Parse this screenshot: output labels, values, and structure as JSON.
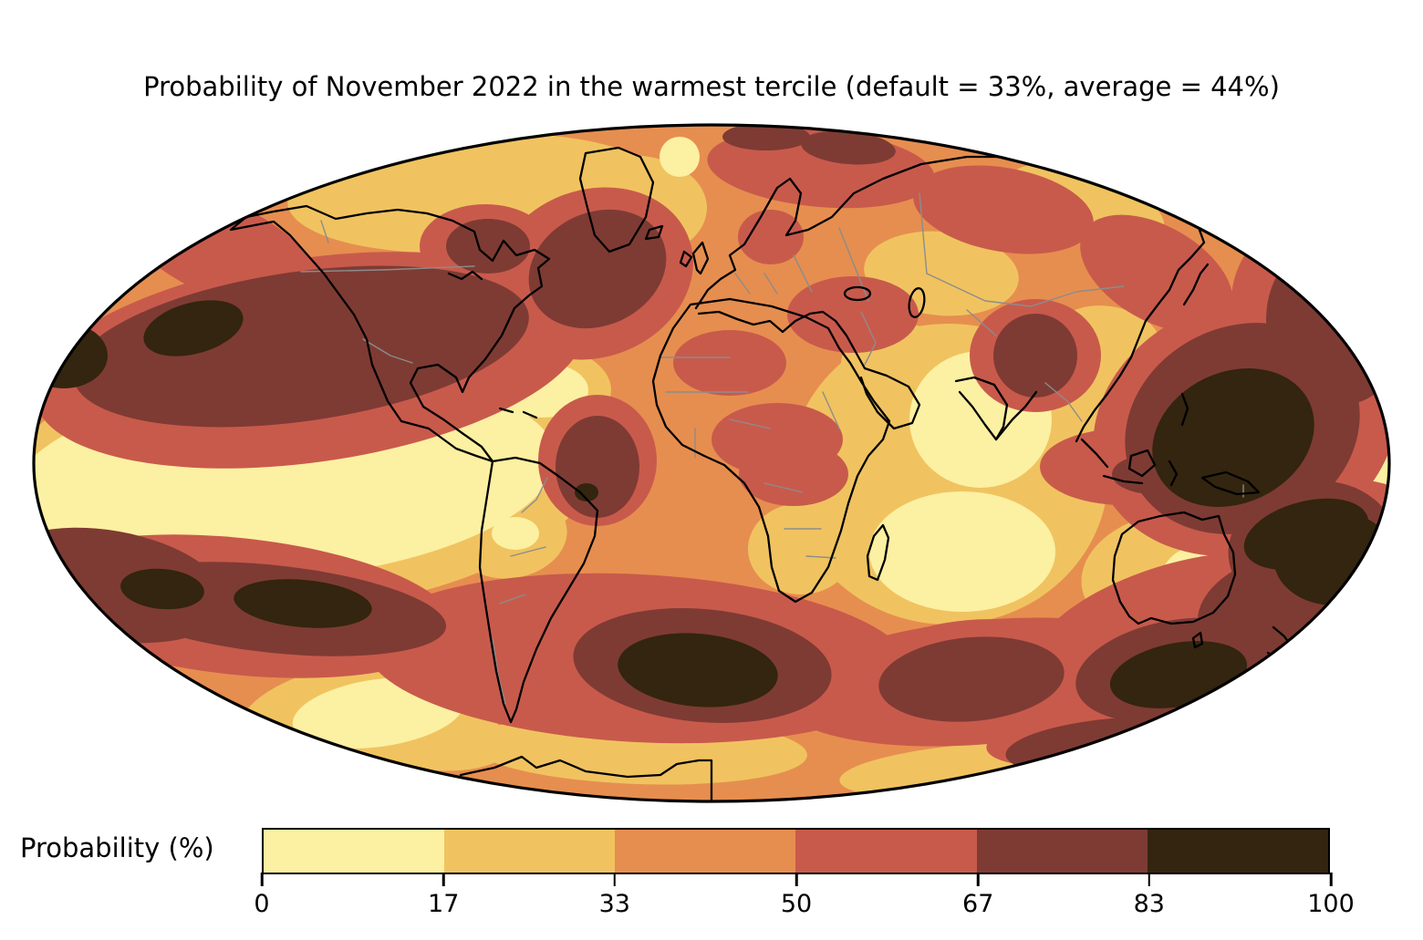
{
  "figure": {
    "title": "Probability of November 2022 in the warmest tercile (default = 33%, average = 44%)"
  },
  "colorbar": {
    "label": "Probability (%)",
    "segments": [
      {
        "range": "0-17",
        "color": "#FCF0A2",
        "width_pct": 17
      },
      {
        "range": "17-33",
        "color": "#F0C360",
        "width_pct": 16
      },
      {
        "range": "33-50",
        "color": "#E68E4F",
        "width_pct": 17
      },
      {
        "range": "50-67",
        "color": "#C85A4C",
        "width_pct": 17
      },
      {
        "range": "67-83",
        "color": "#7E3B33",
        "width_pct": 16
      },
      {
        "range": "83-100",
        "color": "#33250F",
        "width_pct": 17
      }
    ],
    "ticks": [
      {
        "label": "0",
        "pos_pct": 0
      },
      {
        "label": "17",
        "pos_pct": 17
      },
      {
        "label": "33",
        "pos_pct": 33
      },
      {
        "label": "50",
        "pos_pct": 50
      },
      {
        "label": "67",
        "pos_pct": 67
      },
      {
        "label": "83",
        "pos_pct": 83
      },
      {
        "label": "100",
        "pos_pct": 100
      }
    ]
  },
  "palette": {
    "bin_0_17": "#FCF0A2",
    "bin_17_33": "#F0C360",
    "bin_33_50": "#E68E4F",
    "bin_50_67": "#C85A4C",
    "bin_67_83": "#7E3B33",
    "bin_83_100": "#33250F",
    "coastline": "#000000",
    "border": "#8C8C8C",
    "background": "#FFFFFF"
  },
  "chart_data": {
    "type": "heatmap",
    "subtype": "filled-contour probability map on Mollweide world projection",
    "title": "Probability of November 2022 in the warmest tercile (default = 33%, average = 44%)",
    "colorbar_label": "Probability (%)",
    "tick_values": [
      0,
      17,
      33,
      50,
      67,
      83,
      100
    ],
    "bins": [
      {
        "range": [
          0,
          17
        ],
        "color": "#FCF0A2"
      },
      {
        "range": [
          17,
          33
        ],
        "color": "#F0C360"
      },
      {
        "range": [
          33,
          50
        ],
        "color": "#E68E4F"
      },
      {
        "range": [
          50,
          67
        ],
        "color": "#C85A4C"
      },
      {
        "range": [
          67,
          83
        ],
        "color": "#7E3B33"
      },
      {
        "range": [
          83,
          100
        ],
        "color": "#33250F"
      }
    ],
    "reference_values": {
      "default_pct": 33,
      "average_pct": 44
    },
    "legend_position": "bottom",
    "regions_estimated": [
      {
        "area": "Eastern tropical Pacific (La Nina tongue)",
        "bin": "0-17"
      },
      {
        "area": "Southeastern subtropical Pacific",
        "bin": "0-17"
      },
      {
        "area": "Tropical North Atlantic off South America",
        "bin": "0-17"
      },
      {
        "area": "Arabian Sea and central tropical Indian Ocean",
        "bin": "0-17"
      },
      {
        "area": "Eastern Australian interior",
        "bin": "0-17"
      },
      {
        "area": "Canadian Arctic and Greenland fringe",
        "bin": "17-33"
      },
      {
        "area": "Most continental land areas",
        "bin": "33-50"
      },
      {
        "area": "Mid-latitude ocean bands in both hemispheres",
        "bin": "50-67"
      },
      {
        "area": "North Pacific",
        "bin": "67-100"
      },
      {
        "area": "North Atlantic south of Greenland",
        "bin": "67-83"
      },
      {
        "area": "Tibetan Plateau / northeast India",
        "bin": "67-83"
      },
      {
        "area": "Western tropical Pacific / Philippine Sea",
        "bin": "83-100"
      },
      {
        "area": "Coral Sea and Tasman Sea",
        "bin": "83-100"
      },
      {
        "area": "Southern South Atlantic",
        "bin": "83-100"
      },
      {
        "area": "South Indian Ocean",
        "bin": "67-83"
      }
    ]
  }
}
